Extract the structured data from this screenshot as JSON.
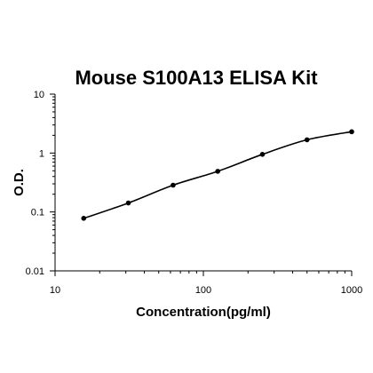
{
  "chart_data": {
    "type": "line",
    "title": "Mouse S100A13 ELISA Kit",
    "xlabel": "Concentration(pg/ml)",
    "ylabel": "O.D.",
    "x_scale": "log",
    "y_scale": "log",
    "xlim": [
      10,
      1000
    ],
    "ylim": [
      0.01,
      10
    ],
    "x_ticks": [
      "10",
      "100",
      "1000"
    ],
    "y_ticks": [
      "0.01",
      "0.1",
      "1",
      "10"
    ],
    "grid": false,
    "legend": "none",
    "line_color": "#000000",
    "point_color": "#000000",
    "series": [
      {
        "x": [
          15.6,
          31.2,
          62.5,
          125,
          250,
          500,
          1000
        ],
        "y": [
          0.078,
          0.142,
          0.285,
          0.49,
          0.95,
          1.68,
          2.3
        ]
      }
    ]
  }
}
